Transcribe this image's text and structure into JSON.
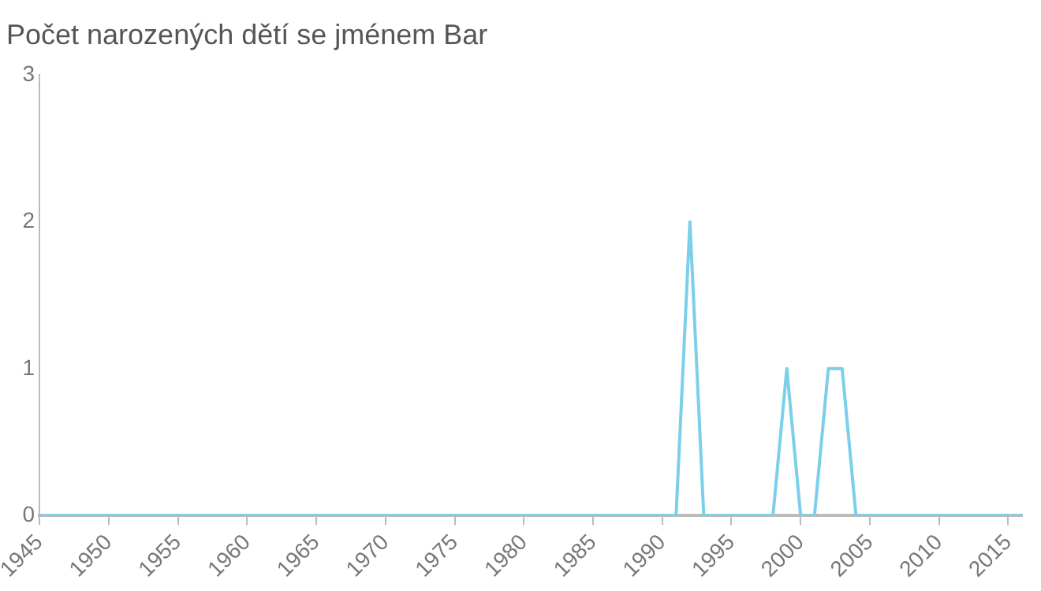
{
  "chart_data": {
    "type": "line",
    "title": "Počet narozených dětí se jménem Bar",
    "x": [
      1945,
      1946,
      1947,
      1948,
      1949,
      1950,
      1951,
      1952,
      1953,
      1954,
      1955,
      1956,
      1957,
      1958,
      1959,
      1960,
      1961,
      1962,
      1963,
      1964,
      1965,
      1966,
      1967,
      1968,
      1969,
      1970,
      1971,
      1972,
      1973,
      1974,
      1975,
      1976,
      1977,
      1978,
      1979,
      1980,
      1981,
      1982,
      1983,
      1984,
      1985,
      1986,
      1987,
      1988,
      1989,
      1990,
      1991,
      1992,
      1993,
      1994,
      1995,
      1996,
      1997,
      1998,
      1999,
      2000,
      2001,
      2002,
      2003,
      2004,
      2005,
      2006,
      2007,
      2008,
      2009,
      2010,
      2011,
      2012,
      2013,
      2014,
      2015,
      2016
    ],
    "series": [
      {
        "color": "#7ccfea",
        "values": [
          0,
          0,
          0,
          0,
          0,
          0,
          0,
          0,
          0,
          0,
          0,
          0,
          0,
          0,
          0,
          0,
          0,
          0,
          0,
          0,
          0,
          0,
          0,
          0,
          0,
          0,
          0,
          0,
          0,
          0,
          0,
          0,
          0,
          0,
          0,
          0,
          0,
          0,
          0,
          0,
          0,
          0,
          0,
          0,
          0,
          0,
          0,
          2,
          0,
          0,
          0,
          0,
          0,
          0,
          1,
          0,
          0,
          1,
          1,
          0,
          0,
          0,
          0,
          0,
          0,
          0,
          0,
          0,
          0,
          0,
          0,
          0
        ]
      }
    ],
    "xlim": [
      1945,
      2016
    ],
    "xticks": [
      1945,
      1950,
      1955,
      1960,
      1965,
      1970,
      1975,
      1980,
      1985,
      1990,
      1995,
      2000,
      2005,
      2010,
      2015
    ],
    "ylim": [
      0,
      3
    ],
    "yticks": [
      0,
      1,
      2,
      3
    ],
    "grid": false,
    "legend": false,
    "marker": "none",
    "line_style": "solid"
  }
}
